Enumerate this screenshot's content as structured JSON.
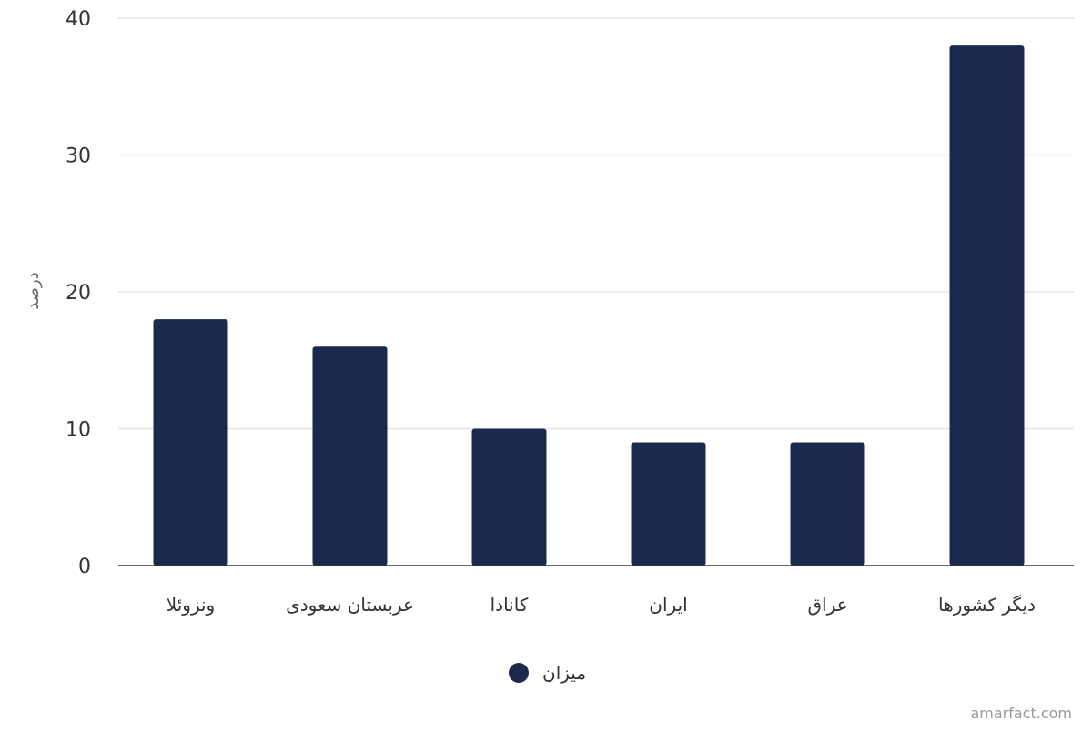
{
  "chart_data": {
    "type": "bar",
    "categories": [
      "ونزوئلا",
      "عربستان سعودی",
      "کانادا",
      "ایران",
      "عراق",
      "دیگر کشورها"
    ],
    "series": [
      {
        "name": "میزان",
        "values": [
          18,
          16,
          10,
          9,
          9,
          38
        ]
      }
    ],
    "title": "",
    "xlabel": "",
    "ylabel": "درصد",
    "ylim": [
      0,
      40
    ],
    "yticks": [
      0,
      10,
      20,
      30,
      40
    ],
    "grid": true,
    "legend": "bottom-center",
    "colors": {
      "bar": "#1b2a4c",
      "grid": "#e6e6e6",
      "axis": "#333333",
      "text": "#333333",
      "credit": "#999999"
    }
  },
  "credit": "amarfact.com"
}
